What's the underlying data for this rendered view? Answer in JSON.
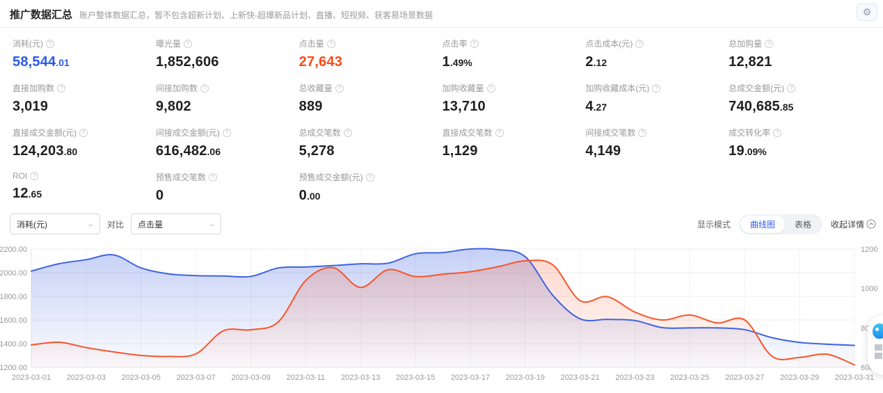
{
  "header": {
    "title": "推广数据汇总",
    "subtitle": "账户整体数据汇总，暂不包含超新计划、上新快-超爆新品计划、直播、短视频、获客易场景数据"
  },
  "colors": {
    "spend_value": "#2859e6",
    "click_value": "#ff4713",
    "default_value": "#1f1f1f",
    "blue_line": "#3f63e0",
    "orange_line": "#f95428"
  },
  "metrics": [
    {
      "label": "消耗(元)",
      "int": "58,544",
      "dec": ".01",
      "color": "#2859e6"
    },
    {
      "label": "曝光量",
      "int": "1,852,606",
      "dec": "",
      "color": null
    },
    {
      "label": "点击量",
      "int": "27,643",
      "dec": "",
      "color": "#ff4713"
    },
    {
      "label": "点击率",
      "int": "1",
      "dec": ".49%",
      "color": null
    },
    {
      "label": "点击成本(元)",
      "int": "2",
      "dec": ".12",
      "color": null
    },
    {
      "label": "总加购量",
      "int": "12,821",
      "dec": "",
      "color": null
    },
    {
      "label": "直接加购数",
      "int": "3,019",
      "dec": "",
      "color": null
    },
    {
      "label": "间接加购数",
      "int": "9,802",
      "dec": "",
      "color": null
    },
    {
      "label": "总收藏量",
      "int": "889",
      "dec": "",
      "color": null
    },
    {
      "label": "加购收藏量",
      "int": "13,710",
      "dec": "",
      "color": null
    },
    {
      "label": "加购收藏成本(元)",
      "int": "4",
      "dec": ".27",
      "color": null
    },
    {
      "label": "总成交金额(元)",
      "int": "740,685",
      "dec": ".85",
      "color": null
    },
    {
      "label": "直接成交金额(元)",
      "int": "124,203",
      "dec": ".80",
      "color": null
    },
    {
      "label": "间接成交金额(元)",
      "int": "616,482",
      "dec": ".06",
      "color": null
    },
    {
      "label": "总成交笔数",
      "int": "5,278",
      "dec": "",
      "color": null
    },
    {
      "label": "直接成交笔数",
      "int": "1,129",
      "dec": "",
      "color": null
    },
    {
      "label": "间接成交笔数",
      "int": "4,149",
      "dec": "",
      "color": null
    },
    {
      "label": "成交转化率",
      "int": "19",
      "dec": ".09%",
      "color": null
    },
    {
      "label": "ROI",
      "int": "12",
      "dec": ".65",
      "color": null
    },
    {
      "label": "预售成交笔数",
      "int": "0",
      "dec": "",
      "color": null
    },
    {
      "label": "预售成交金额(元)",
      "int": "0",
      "dec": ".00",
      "color": null
    }
  ],
  "controls": {
    "metric_select_value": "消耗(元)",
    "compare_label": "对比",
    "compare_select_value": "点击量",
    "display_mode_label": "显示模式",
    "mode_curve": "曲线图",
    "mode_table": "表格",
    "active_mode": "曲线图",
    "collapse_label": "收起详情"
  },
  "chart_data": {
    "type": "line",
    "x": [
      "2023-03-01",
      "2023-03-02",
      "2023-03-03",
      "2023-03-04",
      "2023-03-05",
      "2023-03-06",
      "2023-03-07",
      "2023-03-08",
      "2023-03-09",
      "2023-03-10",
      "2023-03-11",
      "2023-03-12",
      "2023-03-13",
      "2023-03-14",
      "2023-03-15",
      "2023-03-16",
      "2023-03-17",
      "2023-03-18",
      "2023-03-19",
      "2023-03-20",
      "2023-03-21",
      "2023-03-22",
      "2023-03-23",
      "2023-03-24",
      "2023-03-25",
      "2023-03-26",
      "2023-03-27",
      "2023-03-28",
      "2023-03-29",
      "2023-03-30",
      "2023-03-31"
    ],
    "x_tick_labels": [
      "2023-03-01",
      "2023-03-03",
      "2023-03-05",
      "2023-03-07",
      "2023-03-09",
      "2023-03-11",
      "2023-03-13",
      "2023-03-15",
      "2023-03-17",
      "2023-03-19",
      "2023-03-21",
      "2023-03-23",
      "2023-03-25",
      "2023-03-27",
      "2023-03-29",
      "2023-03-31"
    ],
    "series": [
      {
        "name": "消耗(元)",
        "axis": "left",
        "color": "#3f63e0",
        "fill_top_opacity": 0.3,
        "values": [
          2013,
          2075,
          2110,
          2150,
          2040,
          1990,
          1975,
          1972,
          1968,
          2040,
          2048,
          2060,
          2075,
          2080,
          2160,
          2170,
          2200,
          2195,
          2135,
          1810,
          1610,
          1605,
          1595,
          1535,
          1533,
          1533,
          1518,
          1450,
          1410,
          1395,
          1385
        ]
      },
      {
        "name": "点击量",
        "axis": "right",
        "color": "#f95428",
        "fill_top_opacity": 0.22,
        "values": [
          713,
          727,
          700,
          678,
          660,
          655,
          668,
          785,
          790,
          830,
          1040,
          1105,
          1005,
          1095,
          1060,
          1072,
          1085,
          1110,
          1140,
          1120,
          938,
          958,
          880,
          840,
          865,
          825,
          840,
          655,
          650,
          666,
          612
        ]
      }
    ],
    "y_left": {
      "min": 1200,
      "max": 2200,
      "tick_labels": [
        "2200.00",
        "2000.00",
        "1800.00",
        "1600.00",
        "1400.00",
        "1200.00"
      ]
    },
    "y_right": {
      "min": 600,
      "max": 1200,
      "tick_labels": [
        "1200",
        "1000",
        "800",
        "600"
      ]
    },
    "grid": true,
    "legend_position": "none",
    "title": "",
    "xlabel": "",
    "ylabel": ""
  }
}
